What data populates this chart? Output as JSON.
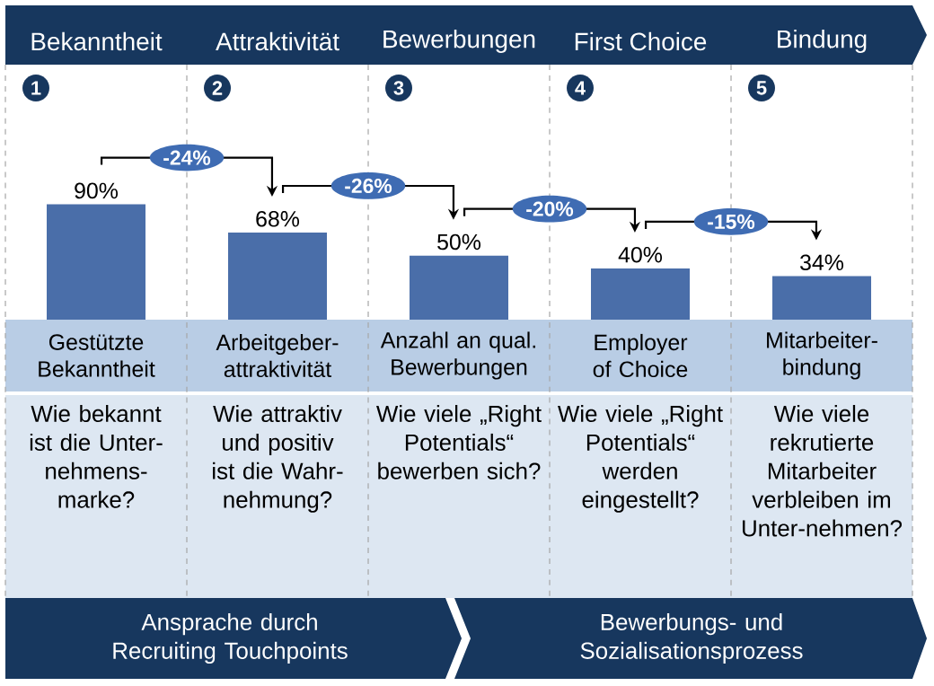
{
  "chart_data": {
    "type": "bar",
    "categories": [
      "Gestützte Bekanntheit",
      "Arbeitgeber-attraktivität",
      "Anzahl an qual. Bewerbungen",
      "Employer of Choice",
      "Mitarbeiter-bindung"
    ],
    "values": [
      90,
      68,
      50,
      40,
      34
    ],
    "value_labels": [
      "90%",
      "68%",
      "50%",
      "40%",
      "34%"
    ],
    "color": "#4a6ea9",
    "annotations": [
      "Bekanntheit",
      "Attraktivität",
      "Bewerbungen",
      "First Choice",
      "Bindung",
      "1",
      "2",
      "3",
      "4",
      "5",
      "-24%",
      "-26%",
      "-20%",
      "-15%",
      "Wie bekannt ist die Unter-nehmens-marke?",
      "Wie attraktiv und positiv ist die Wahr-nehmung?",
      "Wie viele „Right Potentials“ bewerben sich?",
      "Wie viele „Right Potentials“ werden eingestellt?",
      "Wie viele rekrutierte Mitarbeiter verbleiben im Unter-nehmen?",
      "Ansprache durch Recruiting Touchpoints",
      "Bewerbungs- und Sozialisationsprozess"
    ]
  }
}
